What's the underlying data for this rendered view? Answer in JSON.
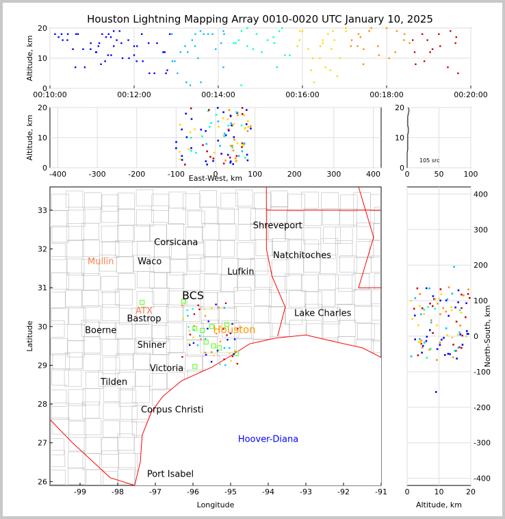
{
  "chart_data": {
    "title": "Houston Lightning Mapping Array 0010-0020 UTC January 10, 2025",
    "type": "scatter",
    "colors": {
      "early": "#0000ff",
      "mid1": "#00bfff",
      "mid2": "#00ffcc",
      "late1": "#ffd700",
      "late2": "#ff8c00",
      "latest": "#cc0000",
      "state_border": "#ff0000",
      "county_border": "#bbbbbb",
      "station_marker": "#66ff33",
      "city_label": "#000000",
      "houston_label": "#ff9900",
      "other_label": "#ff7f50",
      "hoover_label": "#0000ff"
    },
    "time_height": {
      "ylabel": "Altitude, km",
      "ylim": [
        0,
        20
      ],
      "yticks": [
        "0",
        "10",
        "20"
      ],
      "xticks": [
        "00:10:00",
        "00:12:00",
        "00:14:00",
        "00:16:00",
        "00:18:00",
        "00:20:00"
      ],
      "points": [
        [
          0.3,
          17
        ],
        [
          0.4,
          18
        ],
        [
          0.6,
          16
        ],
        [
          0.9,
          18
        ],
        [
          1.2,
          7
        ],
        [
          1.4,
          13
        ],
        [
          1.6,
          12
        ],
        [
          1.7,
          15
        ],
        [
          1.8,
          18
        ],
        [
          1.9,
          9
        ],
        [
          2.0,
          11
        ],
        [
          2.1,
          17
        ],
        [
          2.2,
          14
        ],
        [
          2.3,
          16
        ],
        [
          2.4,
          19
        ],
        [
          2.5,
          10
        ],
        [
          2.7,
          16
        ],
        [
          2.9,
          11
        ],
        [
          3.0,
          14
        ],
        [
          3.2,
          9
        ],
        [
          3.4,
          15
        ],
        [
          3.6,
          5
        ],
        [
          3.9,
          12
        ],
        [
          4.0,
          5
        ],
        [
          4.2,
          18
        ],
        [
          4.3,
          9
        ],
        [
          4.5,
          12
        ],
        [
          4.7,
          2
        ],
        [
          4.9,
          16
        ],
        [
          5.0,
          14
        ],
        [
          5.1,
          10
        ],
        [
          5.2,
          2
        ],
        [
          5.6,
          18
        ],
        [
          6.0,
          18
        ],
        [
          5.3,
          18
        ],
        [
          5.9,
          15
        ],
        [
          6.4,
          15
        ],
        [
          6.6,
          19
        ],
        [
          6.8,
          20
        ],
        [
          6.8,
          14
        ],
        [
          7.0,
          13
        ],
        [
          7.3,
          12
        ],
        [
          7.5,
          16
        ],
        [
          7.7,
          17
        ],
        [
          7.9,
          19
        ],
        [
          8.1,
          11
        ],
        [
          8.6,
          16
        ],
        [
          8.9,
          13
        ],
        [
          9.0,
          6
        ],
        [
          9.1,
          2
        ],
        [
          9.3,
          10
        ],
        [
          9.4,
          15
        ],
        [
          9.7,
          13
        ],
        [
          9.8,
          16
        ],
        [
          9.9,
          4
        ],
        [
          10.0,
          10
        ],
        [
          10.2,
          19
        ],
        [
          10.4,
          16
        ],
        [
          10.6,
          14
        ],
        [
          10.7,
          17
        ],
        [
          10.8,
          8
        ],
        [
          11.0,
          19
        ],
        [
          11.3,
          14
        ],
        [
          11.6,
          20
        ],
        [
          11.9,
          12
        ],
        [
          12.2,
          16
        ],
        [
          12.5,
          16
        ],
        [
          12.6,
          8
        ],
        [
          12.9,
          9
        ],
        [
          13.1,
          12
        ],
        [
          13.4,
          18
        ],
        [
          13.8,
          19
        ],
        [
          14.0,
          17
        ]
      ],
      "point_src": [
        [
          0.2,
          18
        ],
        [
          0.5,
          16
        ],
        [
          0.7,
          18
        ],
        [
          0.9,
          13
        ],
        [
          1.0,
          7
        ],
        [
          1.1,
          18
        ],
        [
          1.3,
          13
        ],
        [
          1.6,
          15
        ],
        [
          1.8,
          12
        ],
        [
          1.9,
          14
        ],
        [
          2.0,
          8
        ],
        [
          2.2,
          17
        ],
        [
          2.3,
          18
        ],
        [
          2.4,
          11
        ],
        [
          2.5,
          19
        ],
        [
          2.8,
          15
        ],
        [
          3.1,
          10
        ],
        [
          3.3,
          14
        ],
        [
          3.4,
          9
        ],
        [
          3.6,
          18
        ],
        [
          3.9,
          5
        ],
        [
          4.2,
          15
        ],
        [
          4.5,
          12
        ],
        [
          4.6,
          6
        ],
        [
          4.7,
          18
        ],
        [
          4.8,
          9
        ],
        [
          5.0,
          5
        ],
        [
          5.3,
          14
        ],
        [
          5.4,
          12
        ],
        [
          5.5,
          1
        ],
        [
          5.7,
          18
        ],
        [
          5.9,
          19
        ],
        [
          6.2,
          18
        ],
        [
          6.5,
          13
        ],
        [
          6.8,
          7
        ],
        [
          6.8,
          19
        ],
        [
          7.2,
          15
        ],
        [
          7.4,
          16
        ],
        [
          7.5,
          1
        ],
        [
          8.1,
          18
        ],
        [
          8.8,
          15
        ],
        [
          8.9,
          7
        ],
        [
          9.1,
          20
        ],
        [
          9.4,
          11
        ],
        [
          9.7,
          14
        ],
        [
          9.8,
          19
        ],
        [
          9.9,
          19
        ],
        [
          10.3,
          10
        ],
        [
          10.6,
          14
        ],
        [
          10.7,
          16
        ],
        [
          10.8,
          7
        ],
        [
          10.9,
          18
        ],
        [
          11.0,
          6
        ],
        [
          11.1,
          19
        ],
        [
          11.6,
          20
        ],
        [
          11.8,
          14
        ],
        [
          12.1,
          18
        ],
        [
          12.3,
          13
        ],
        [
          12.6,
          20
        ],
        [
          12.9,
          11
        ],
        [
          13.3,
          10
        ],
        [
          13.6,
          19
        ],
        [
          13.9,
          18
        ],
        [
          14.1,
          15
        ],
        [
          14.3,
          12
        ],
        [
          14.6,
          18
        ],
        [
          14.8,
          16
        ],
        [
          15.0,
          13
        ],
        [
          15.3,
          14
        ],
        [
          15.6,
          7
        ],
        [
          15.9,
          15
        ],
        [
          16.0,
          5
        ]
      ]
    },
    "ew_height": {
      "xlabel": "East-West, km",
      "ylabel": "Altitude, km",
      "xlim": [
        -420,
        420
      ],
      "ylim": [
        0,
        20
      ],
      "xticks": [
        "-400",
        "-300",
        "-200",
        "-100",
        "0",
        "100",
        "200",
        "300",
        "400"
      ],
      "yticks": [
        "0",
        "10",
        "20"
      ]
    },
    "histogram": {
      "xlim": [
        0,
        100
      ],
      "ylim": [
        0,
        20
      ],
      "xticks": [
        "0",
        "50",
        "100"
      ],
      "yticks": [
        "0",
        "10",
        "20"
      ],
      "count_label": "105 src",
      "counts": [
        0,
        0,
        0,
        0,
        0,
        0,
        1,
        1,
        1,
        1,
        1,
        1,
        2,
        2,
        1,
        1,
        1,
        1,
        2,
        3,
        2
      ]
    },
    "plan_view": {
      "xlabel": "Longitude",
      "ylabel": "Latitude",
      "xlim": [
        -99.8,
        -91.0
      ],
      "ylim": [
        25.9,
        33.6
      ],
      "xticks": [
        "-99",
        "-98",
        "-97",
        "-96",
        "-95",
        "-94",
        "-93",
        "-92",
        "-91"
      ],
      "yticks": [
        "26",
        "27",
        "28",
        "29",
        "30",
        "31",
        "32",
        "33"
      ],
      "places": [
        {
          "name": "Shreveport",
          "lon": -93.75,
          "lat": 32.53,
          "kind": "city"
        },
        {
          "name": "Corsicana",
          "lon": -96.45,
          "lat": 32.1,
          "kind": "city"
        },
        {
          "name": "Natchitoches",
          "lon": -93.1,
          "lat": 31.76,
          "kind": "city"
        },
        {
          "name": "Mullin",
          "lon": -98.45,
          "lat": 31.6,
          "kind": "other"
        },
        {
          "name": "Waco",
          "lon": -97.15,
          "lat": 31.6,
          "kind": "city"
        },
        {
          "name": "Lufkin",
          "lon": -94.73,
          "lat": 31.34,
          "kind": "city"
        },
        {
          "name": "BCS",
          "lon": -96.0,
          "lat": 30.7,
          "kind": "big"
        },
        {
          "name": "ATX",
          "lon": -97.3,
          "lat": 30.33,
          "kind": "other"
        },
        {
          "name": "Bastrop",
          "lon": -97.3,
          "lat": 30.13,
          "kind": "city"
        },
        {
          "name": "Lake Charles",
          "lon": -92.55,
          "lat": 30.27,
          "kind": "city"
        },
        {
          "name": "Boerne",
          "lon": -98.45,
          "lat": 29.83,
          "kind": "city"
        },
        {
          "name": "Houston",
          "lon": -94.9,
          "lat": 29.83,
          "kind": "houston"
        },
        {
          "name": "Shiner",
          "lon": -97.1,
          "lat": 29.45,
          "kind": "city"
        },
        {
          "name": "Victoria",
          "lon": -96.7,
          "lat": 28.85,
          "kind": "city"
        },
        {
          "name": "Tilden",
          "lon": -98.1,
          "lat": 28.5,
          "kind": "city"
        },
        {
          "name": "Corpus Christi",
          "lon": -96.55,
          "lat": 27.78,
          "kind": "city"
        },
        {
          "name": "Hoover-Diana",
          "lon": -94.0,
          "lat": 27.02,
          "kind": "hoover"
        },
        {
          "name": "Port Isabel",
          "lon": -96.6,
          "lat": 26.12,
          "kind": "city"
        }
      ]
    },
    "ns_height": {
      "xlabel": "Altitude, km",
      "ylabel": "North-South, km",
      "xlim": [
        0,
        20
      ],
      "ylim": [
        -420,
        420
      ],
      "xticks": [
        "0",
        "10",
        "20"
      ],
      "yticks": [
        "-400",
        "-300",
        "-200",
        "-100",
        "0",
        "100",
        "200",
        "300",
        "400"
      ]
    }
  }
}
